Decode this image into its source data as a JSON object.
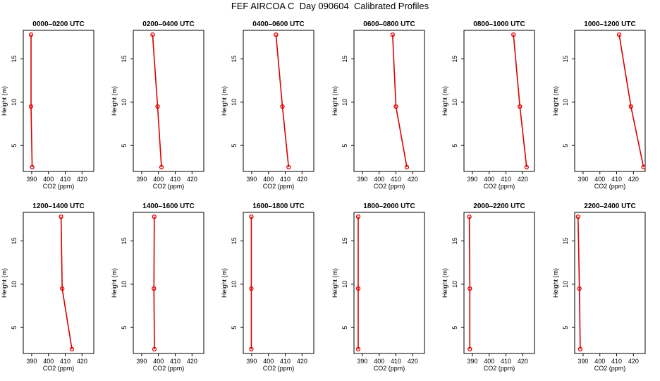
{
  "title": "FEF AIRCOA C  Day 090604  Calibrated Profiles",
  "colors": {
    "line": "#dd0000",
    "axis": "#000000",
    "background": "#ffffff"
  },
  "chart_data": [
    {
      "type": "line",
      "title": "0000–0200 UTC",
      "xlabel": "CO2 (ppm)",
      "ylabel": "Height (m)",
      "xlim": [
        385,
        427
      ],
      "ylim": [
        2,
        18.3
      ],
      "xticks": [
        390,
        400,
        410,
        420
      ],
      "yticks": [
        5,
        10,
        15
      ],
      "x": [
        389.6,
        389.6,
        390.3
      ],
      "y": [
        17.8,
        9.5,
        2.5
      ]
    },
    {
      "type": "line",
      "title": "0200–0400 UTC",
      "xlabel": "CO2 (ppm)",
      "ylabel": "Height (m)",
      "xlim": [
        385,
        427
      ],
      "ylim": [
        2,
        18.3
      ],
      "xticks": [
        390,
        400,
        410,
        420
      ],
      "yticks": [
        5,
        10,
        15
      ],
      "x": [
        396.5,
        399.5,
        401.8
      ],
      "y": [
        17.8,
        9.5,
        2.5
      ]
    },
    {
      "type": "line",
      "title": "0400–0600 UTC",
      "xlabel": "CO2 (ppm)",
      "ylabel": "Height (m)",
      "xlim": [
        385,
        427
      ],
      "ylim": [
        2,
        18.3
      ],
      "xticks": [
        390,
        400,
        410,
        420
      ],
      "yticks": [
        5,
        10,
        15
      ],
      "x": [
        404.5,
        408.3,
        412.0
      ],
      "y": [
        17.8,
        9.5,
        2.5
      ]
    },
    {
      "type": "line",
      "title": "0600–0800 UTC",
      "xlabel": "CO2 (ppm)",
      "ylabel": "Height (m)",
      "xlim": [
        385,
        427
      ],
      "ylim": [
        2,
        18.3
      ],
      "xticks": [
        390,
        400,
        410,
        420
      ],
      "yticks": [
        5,
        10,
        15
      ],
      "x": [
        408.0,
        410.0,
        416.5
      ],
      "y": [
        17.8,
        9.5,
        2.5
      ]
    },
    {
      "type": "line",
      "title": "0800–1000 UTC",
      "xlabel": "CO2 (ppm)",
      "ylabel": "Height (m)",
      "xlim": [
        385,
        427
      ],
      "ylim": [
        2,
        18.3
      ],
      "xticks": [
        390,
        400,
        410,
        420
      ],
      "yticks": [
        5,
        10,
        15
      ],
      "x": [
        414.5,
        418.3,
        422.3
      ],
      "y": [
        17.8,
        9.5,
        2.5
      ]
    },
    {
      "type": "line",
      "title": "1000–1200 UTC",
      "xlabel": "CO2 (ppm)",
      "ylabel": "Height (m)",
      "xlim": [
        385,
        427
      ],
      "ylim": [
        2,
        18.3
      ],
      "xticks": [
        390,
        400,
        410,
        420
      ],
      "yticks": [
        5,
        10,
        15
      ],
      "x": [
        411.5,
        418.5,
        426.0
      ],
      "y": [
        17.8,
        9.5,
        2.5
      ]
    },
    {
      "type": "line",
      "title": "1200–1400 UTC",
      "xlabel": "CO2 (ppm)",
      "ylabel": "Height (m)",
      "xlim": [
        385,
        427
      ],
      "ylim": [
        2,
        18.3
      ],
      "xticks": [
        390,
        400,
        410,
        420
      ],
      "yticks": [
        5,
        10,
        15
      ],
      "x": [
        407.5,
        408.2,
        414.0
      ],
      "y": [
        17.8,
        9.5,
        2.5
      ]
    },
    {
      "type": "line",
      "title": "1400–1600 UTC",
      "xlabel": "CO2 (ppm)",
      "ylabel": "Height (m)",
      "xlim": [
        385,
        427
      ],
      "ylim": [
        2,
        18.3
      ],
      "xticks": [
        390,
        400,
        410,
        420
      ],
      "yticks": [
        5,
        10,
        15
      ],
      "x": [
        397.5,
        397.3,
        397.6
      ],
      "y": [
        17.8,
        9.5,
        2.5
      ]
    },
    {
      "type": "line",
      "title": "1600–1800 UTC",
      "xlabel": "CO2 (ppm)",
      "ylabel": "Height (m)",
      "xlim": [
        385,
        427
      ],
      "ylim": [
        2,
        18.3
      ],
      "xticks": [
        390,
        400,
        410,
        420
      ],
      "yticks": [
        5,
        10,
        15
      ],
      "x": [
        389.8,
        389.8,
        389.8
      ],
      "y": [
        17.8,
        9.5,
        2.5
      ]
    },
    {
      "type": "line",
      "title": "1800–2000 UTC",
      "xlabel": "CO2 (ppm)",
      "ylabel": "Height (m)",
      "xlim": [
        385,
        427
      ],
      "ylim": [
        2,
        18.3
      ],
      "xticks": [
        390,
        400,
        410,
        420
      ],
      "yticks": [
        5,
        10,
        15
      ],
      "x": [
        387.5,
        387.5,
        387.5
      ],
      "y": [
        17.8,
        9.5,
        2.5
      ]
    },
    {
      "type": "line",
      "title": "2000–2200 UTC",
      "xlabel": "CO2 (ppm)",
      "ylabel": "Height (m)",
      "xlim": [
        385,
        427
      ],
      "ylim": [
        2,
        18.3
      ],
      "xticks": [
        390,
        400,
        410,
        420
      ],
      "yticks": [
        5,
        10,
        15
      ],
      "x": [
        388.2,
        388.5,
        388.5
      ],
      "y": [
        17.8,
        9.5,
        2.5
      ]
    },
    {
      "type": "line",
      "title": "2200–2400 UTC",
      "xlabel": "CO2 (ppm)",
      "ylabel": "Height (m)",
      "xlim": [
        385,
        427
      ],
      "ylim": [
        2,
        18.3
      ],
      "xticks": [
        390,
        400,
        410,
        420
      ],
      "yticks": [
        5,
        10,
        15
      ],
      "x": [
        387.0,
        387.8,
        388.3
      ],
      "y": [
        17.8,
        9.5,
        2.5
      ]
    }
  ]
}
